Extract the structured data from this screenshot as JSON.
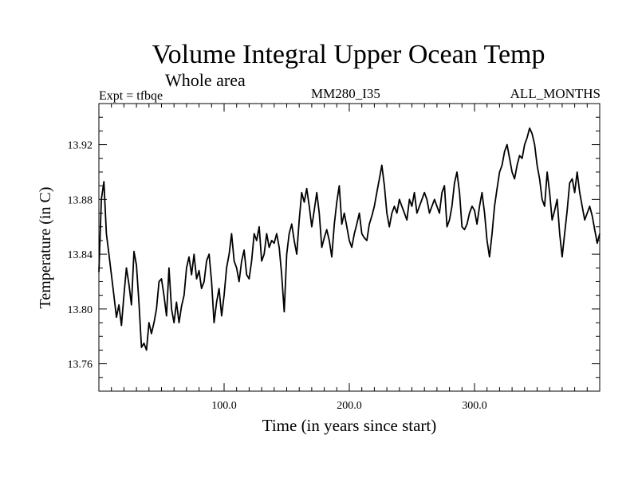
{
  "chart_data": {
    "type": "line",
    "title": "Volume Integral Upper Ocean Temp",
    "subtitle": "Whole area",
    "annotations": {
      "left": "Expt = tfbqe",
      "center": "MM280_I35",
      "right": "ALL_MONTHS"
    },
    "xlabel": "Time (in years since start)",
    "ylabel": "Temperature (in C)",
    "xlim": [
      0,
      400
    ],
    "ylim": [
      13.74,
      13.95
    ],
    "xticks": [
      100,
      200,
      300
    ],
    "xtick_labels": [
      "100.0",
      "200.0",
      "300.0"
    ],
    "yticks": [
      13.76,
      13.8,
      13.84,
      13.88,
      13.92
    ],
    "ytick_labels": [
      "13.76",
      "13.80",
      "13.84",
      "13.88",
      "13.92"
    ],
    "grid": false,
    "line_color": "#000000",
    "series": [
      {
        "x": [
          0,
          2,
          4,
          6,
          8,
          10,
          12,
          14,
          16,
          18,
          20,
          22,
          24,
          26,
          28,
          30,
          32,
          34,
          36,
          38,
          40,
          42,
          44,
          46,
          48,
          50,
          52,
          54,
          56,
          58,
          60,
          62,
          64,
          66,
          68,
          70,
          72,
          74,
          76,
          78,
          80,
          82,
          84,
          86,
          88,
          90,
          92,
          94,
          96,
          98,
          100,
          102,
          104,
          106,
          108,
          110,
          112,
          114,
          116,
          118,
          120,
          122,
          124,
          126,
          128,
          130,
          132,
          134,
          136,
          138,
          140,
          142,
          144,
          146,
          148,
          150,
          152,
          154,
          156,
          158,
          160,
          162,
          164,
          166,
          168,
          170,
          172,
          174,
          176,
          178,
          180,
          182,
          184,
          186,
          188,
          190,
          192,
          194,
          196,
          198,
          200,
          202,
          204,
          206,
          208,
          210,
          212,
          214,
          216,
          218,
          220,
          222,
          224,
          226,
          228,
          230,
          232,
          234,
          236,
          238,
          240,
          242,
          244,
          246,
          248,
          250,
          252,
          254,
          256,
          258,
          260,
          262,
          264,
          266,
          268,
          270,
          272,
          274,
          276,
          278,
          280,
          282,
          284,
          286,
          288,
          290,
          292,
          294,
          296,
          298,
          300,
          302,
          304,
          306,
          308,
          310,
          312,
          314,
          316,
          318,
          320,
          322,
          324,
          326,
          328,
          330,
          332,
          334,
          336,
          338,
          340,
          342,
          344,
          346,
          348,
          350,
          352,
          354,
          356,
          358,
          360,
          362,
          364,
          366,
          368,
          370,
          372,
          374,
          376,
          378,
          380,
          382,
          384,
          386,
          388,
          390,
          392,
          394,
          396,
          398,
          400
        ],
        "y": [
          13.827,
          13.88,
          13.893,
          13.855,
          13.84,
          13.825,
          13.81,
          13.794,
          13.803,
          13.788,
          13.81,
          13.83,
          13.818,
          13.803,
          13.842,
          13.832,
          13.805,
          13.772,
          13.775,
          13.77,
          13.79,
          13.782,
          13.79,
          13.8,
          13.82,
          13.822,
          13.81,
          13.795,
          13.83,
          13.8,
          13.79,
          13.805,
          13.79,
          13.802,
          13.81,
          13.83,
          13.838,
          13.825,
          13.84,
          13.822,
          13.828,
          13.815,
          13.82,
          13.835,
          13.84,
          13.82,
          13.79,
          13.805,
          13.815,
          13.795,
          13.81,
          13.83,
          13.84,
          13.855,
          13.835,
          13.83,
          13.82,
          13.835,
          13.843,
          13.825,
          13.822,
          13.835,
          13.855,
          13.85,
          13.86,
          13.835,
          13.84,
          13.855,
          13.845,
          13.85,
          13.848,
          13.855,
          13.845,
          13.825,
          13.798,
          13.84,
          13.855,
          13.862,
          13.85,
          13.84,
          13.865,
          13.885,
          13.878,
          13.888,
          13.875,
          13.86,
          13.872,
          13.885,
          13.87,
          13.845,
          13.852,
          13.858,
          13.85,
          13.838,
          13.862,
          13.878,
          13.89,
          13.862,
          13.87,
          13.86,
          13.85,
          13.845,
          13.855,
          13.862,
          13.87,
          13.855,
          13.852,
          13.85,
          13.862,
          13.868,
          13.875,
          13.885,
          13.895,
          13.905,
          13.89,
          13.87,
          13.86,
          13.87,
          13.875,
          13.87,
          13.88,
          13.875,
          13.87,
          13.865,
          13.88,
          13.875,
          13.885,
          13.87,
          13.875,
          13.88,
          13.885,
          13.88,
          13.87,
          13.875,
          13.88,
          13.875,
          13.87,
          13.885,
          13.89,
          13.86,
          13.865,
          13.875,
          13.892,
          13.9,
          13.885,
          13.86,
          13.858,
          13.862,
          13.87,
          13.875,
          13.872,
          13.862,
          13.875,
          13.885,
          13.87,
          13.85,
          13.838,
          13.855,
          13.875,
          13.888,
          13.9,
          13.905,
          13.915,
          13.92,
          13.91,
          13.9,
          13.895,
          13.905,
          13.912,
          13.91,
          13.92,
          13.925,
          13.932,
          13.928,
          13.92,
          13.905,
          13.895,
          13.88,
          13.875,
          13.9,
          13.885,
          13.865,
          13.872,
          13.88,
          13.855,
          13.838,
          13.855,
          13.872,
          13.892,
          13.895,
          13.885,
          13.9,
          13.885,
          13.875,
          13.865,
          13.87,
          13.875,
          13.868,
          13.858,
          13.848,
          13.855
        ]
      }
    ]
  }
}
